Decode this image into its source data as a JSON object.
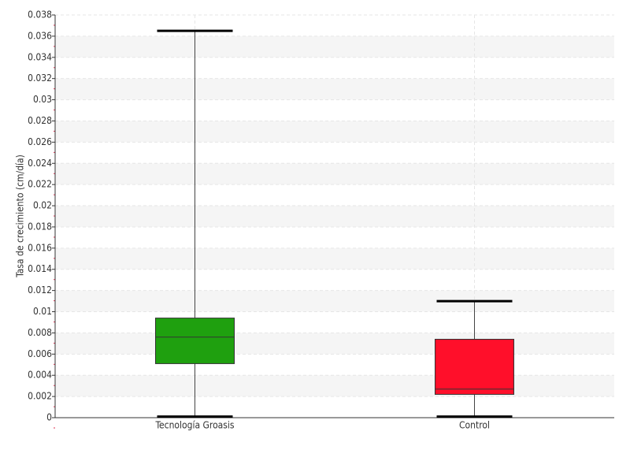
{
  "chart_data": {
    "type": "box",
    "y_label": "Tasa de crecimiento (cm/día)",
    "categories": [
      "Tecnología Groasis",
      "Control"
    ],
    "boxes": [
      {
        "min": 0.0001,
        "q1": 0.0051,
        "median": 0.0076,
        "q3": 0.0094,
        "max": 0.0365,
        "color": "#1fa00f"
      },
      {
        "min": 0.0001,
        "q1": 0.0022,
        "median": 0.0027,
        "q3": 0.0074,
        "max": 0.011,
        "color": "#ff0f2a"
      }
    ],
    "ylim": [
      0,
      0.038
    ],
    "yticks": [
      0,
      0.002,
      0.004,
      0.006,
      0.008,
      0.01,
      0.012,
      0.014,
      0.016,
      0.018,
      0.02,
      0.022,
      0.024,
      0.026,
      0.028,
      0.03,
      0.032,
      0.034,
      0.036,
      0.038
    ],
    "grid": true
  }
}
